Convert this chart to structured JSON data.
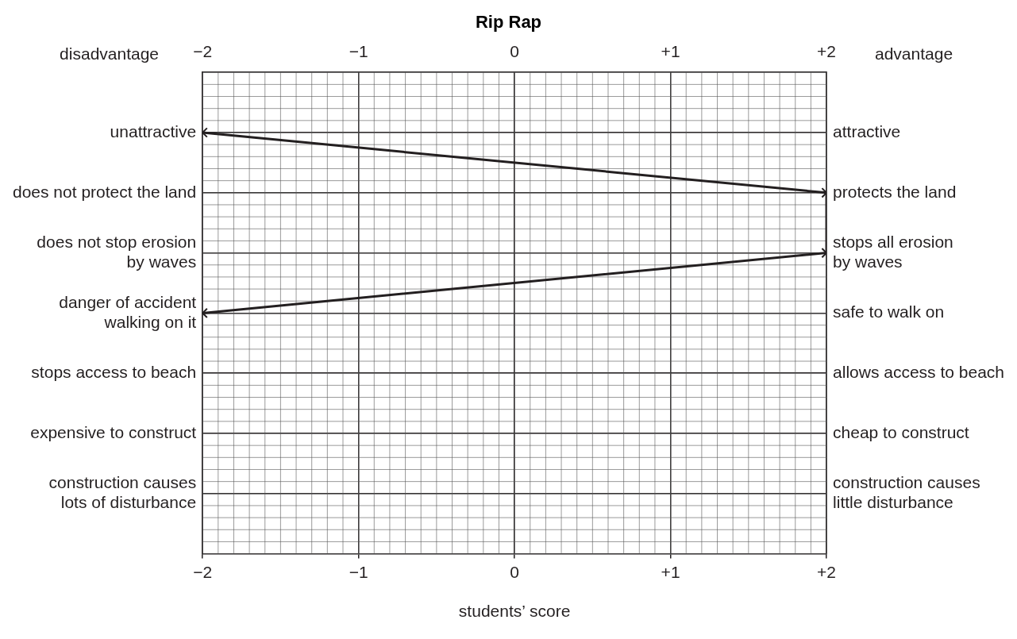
{
  "chart_data": {
    "type": "line",
    "title": "Rip Rap",
    "xlabel": "students’ score",
    "categories": [
      "unattractive",
      "does not protect the land",
      "does not stop erosion\nby waves",
      "danger of accident\nwalking on it",
      "stops access to beach",
      "expensive to construct",
      "construction causes\nlots of disturbance"
    ],
    "y2_categories": [
      "attractive",
      "protects the land",
      "stops all erosion\nby waves",
      "safe to walk on",
      "allows access to beach",
      "cheap to construct",
      "construction causes\nlittle disturbance"
    ],
    "series": [
      {
        "color": "#231f20",
        "values": [
          -2,
          2,
          2,
          -2,
          null,
          null,
          null
        ]
      }
    ],
    "orientation": "horizontal",
    "xlim": [
      -2,
      2
    ],
    "xticks": [
      {
        "value": -2,
        "label": "−2"
      },
      {
        "value": -1,
        "label": "−1"
      },
      0,
      {
        "value": 1,
        "label": "+1"
      },
      {
        "value": 2,
        "label": "+2"
      }
    ],
    "x2lim": [
      -2,
      2
    ],
    "x2ticks": [
      {
        "value": -2,
        "label": "−2"
      },
      {
        "value": -1,
        "label": "−1"
      },
      0,
      {
        "value": 1,
        "label": "+1"
      },
      {
        "value": 2,
        "label": "+2"
      }
    ],
    "annotations": [
      "disadvantage",
      "advantage"
    ],
    "grid": true,
    "legend": false,
    "marker": "cross",
    "line_style": "solid"
  }
}
